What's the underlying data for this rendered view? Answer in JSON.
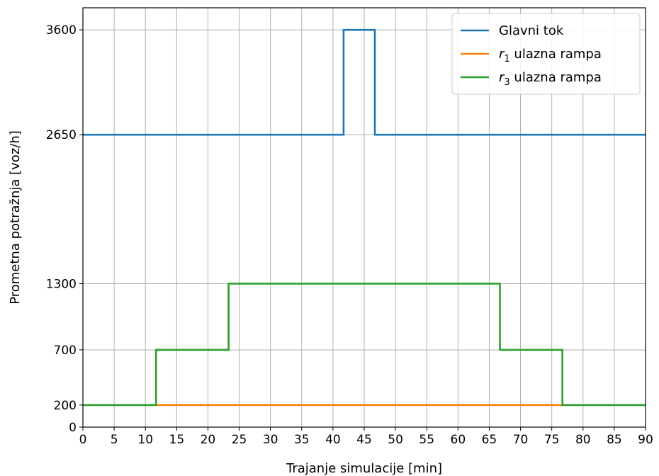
{
  "chart_data": {
    "type": "line",
    "step": true,
    "xlabel": "Trajanje simulacije [min]",
    "ylabel": "Prometna potražnja [voz/h]",
    "xlim": [
      0,
      90
    ],
    "ylim": [
      0,
      3800
    ],
    "xticks": [
      0,
      5,
      10,
      15,
      20,
      25,
      30,
      35,
      40,
      45,
      50,
      55,
      60,
      65,
      70,
      75,
      80,
      85,
      90
    ],
    "yticks": [
      0,
      200,
      700,
      1300,
      2650,
      3600
    ],
    "grid": true,
    "legend_position": "top-right",
    "series": [
      {
        "name": "Glavni tok",
        "name_parts": {
          "var": "",
          "sub": "",
          "rest": "Glavni tok"
        },
        "color": "#1f77b4",
        "points": [
          [
            0,
            2650
          ],
          [
            41.7,
            2650
          ],
          [
            41.7,
            3600
          ],
          [
            46.7,
            3600
          ],
          [
            46.7,
            2650
          ],
          [
            90,
            2650
          ]
        ]
      },
      {
        "name": "r1 ulazna rampa",
        "name_parts": {
          "var": "r",
          "sub": "1",
          "rest": " ulazna rampa"
        },
        "color": "#ff7f0e",
        "points": [
          [
            0,
            200
          ],
          [
            90,
            200
          ]
        ]
      },
      {
        "name": "r3 ulazna rampa",
        "name_parts": {
          "var": "r",
          "sub": "3",
          "rest": " ulazna rampa"
        },
        "color": "#2ca02c",
        "points": [
          [
            0,
            200
          ],
          [
            11.7,
            200
          ],
          [
            11.7,
            700
          ],
          [
            23.3,
            700
          ],
          [
            23.3,
            1300
          ],
          [
            66.7,
            1300
          ],
          [
            66.7,
            700
          ],
          [
            76.7,
            700
          ],
          [
            76.7,
            200
          ],
          [
            90,
            200
          ]
        ]
      }
    ]
  }
}
